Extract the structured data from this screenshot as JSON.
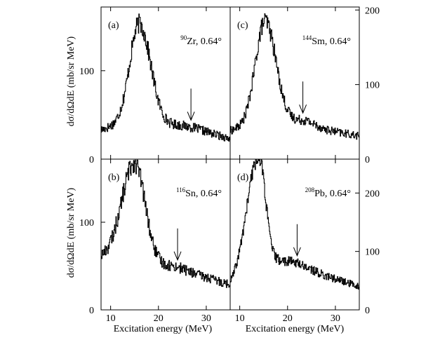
{
  "chart_data": {
    "type": "line",
    "x_axis_title": "Excitation energy (MeV)",
    "y_axis_title": "dσ/dΩdE (mb/sr MeV)",
    "panels": [
      {
        "id": "a",
        "tag": "(a)",
        "mass_number": "90",
        "element": "Zr",
        "angle_text": ", 0.64°",
        "xlim": [
          8,
          35
        ],
        "ylim": [
          0,
          172
        ],
        "yticks": [
          0,
          100
        ],
        "ytick_side": "left",
        "xticks": [
          10,
          20,
          30
        ],
        "show_xtick_labels": false,
        "arrow_x": 26.8,
        "peak": {
          "E": 16.0,
          "height": 115,
          "width_left": 2.0,
          "width_right": 2.4
        },
        "background": [
          [
            8,
            33
          ],
          [
            12,
            40
          ],
          [
            20,
            36
          ],
          [
            24,
            35
          ],
          [
            28,
            31
          ],
          [
            35,
            23
          ]
        ],
        "bump": {
          "E": 26,
          "height": 4,
          "width": 4
        }
      },
      {
        "id": "c",
        "tag": "(c)",
        "mass_number": "144",
        "element": "Sm",
        "angle_text": ", 0.64°",
        "xlim": [
          8,
          35
        ],
        "ylim": [
          0,
          204
        ],
        "yticks": [
          0,
          100,
          200
        ],
        "ytick_side": "right",
        "xticks": [
          10,
          20,
          30
        ],
        "show_xtick_labels": false,
        "arrow_x": 23.2,
        "peak": {
          "E": 15.3,
          "height": 140,
          "width_left": 2.0,
          "width_right": 2.3
        },
        "background": [
          [
            8,
            38
          ],
          [
            12,
            45
          ],
          [
            20,
            46
          ],
          [
            24,
            46
          ],
          [
            28,
            39
          ],
          [
            35,
            31
          ]
        ],
        "bump": {
          "E": 23,
          "height": 6,
          "width": 2.5
        }
      },
      {
        "id": "b",
        "tag": "(b)",
        "mass_number": "116",
        "element": "Sn",
        "angle_text": ", 0.64°",
        "xlim": [
          8,
          35
        ],
        "ylim": [
          0,
          172
        ],
        "yticks": [
          0,
          100
        ],
        "ytick_side": "left",
        "xticks": [
          10,
          20,
          30
        ],
        "show_xtick_labels": true,
        "arrow_x": 24.0,
        "peak": {
          "E": 15.0,
          "height": 118,
          "width_left": 2.8,
          "width_right": 2.2
        },
        "background": [
          [
            8,
            58
          ],
          [
            12,
            50
          ],
          [
            20,
            50
          ],
          [
            24,
            47
          ],
          [
            28,
            40
          ],
          [
            35,
            29
          ]
        ],
        "bump": {
          "E": 23,
          "height": 2,
          "width": 3
        }
      },
      {
        "id": "d",
        "tag": "(d)",
        "mass_number": "208",
        "element": "Pb",
        "angle_text": ", 0.64°",
        "xlim": [
          8,
          35
        ],
        "ylim": [
          0,
          258
        ],
        "yticks": [
          0,
          100,
          200
        ],
        "ytick_side": "right",
        "xticks": [
          10,
          20,
          30
        ],
        "show_xtick_labels": true,
        "arrow_x": 22.0,
        "peak": {
          "E": 14.0,
          "height": 190,
          "width_left": 2.4,
          "width_right": 1.4
        },
        "background": [
          [
            8,
            40
          ],
          [
            12,
            70
          ],
          [
            18,
            80
          ],
          [
            22,
            75
          ],
          [
            28,
            58
          ],
          [
            35,
            40
          ]
        ],
        "bump": {
          "E": 21,
          "height": 6,
          "width": 3
        }
      }
    ]
  }
}
